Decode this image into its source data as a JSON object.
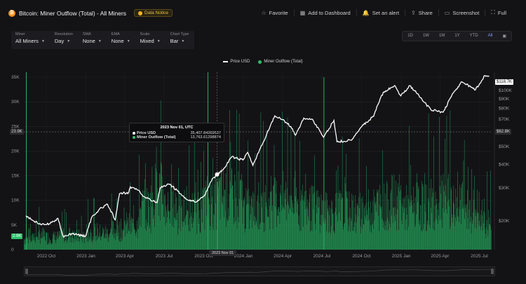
{
  "header": {
    "coin_symbol": "₿",
    "title": "Bitcoin: Miner Outflow (Total) - All Miners",
    "notice": "Data Notice",
    "actions": [
      {
        "icon": "star-icon",
        "glyph": "☆",
        "label": "Favorite"
      },
      {
        "icon": "dashboard-icon",
        "glyph": "▦",
        "label": "Add to Dashboard"
      },
      {
        "icon": "bell-icon",
        "glyph": "🔔",
        "label": "Set an alert"
      },
      {
        "icon": "share-icon",
        "glyph": "⇪",
        "label": "Share"
      },
      {
        "icon": "screenshot-icon",
        "glyph": "▭",
        "label": "Screenshot"
      },
      {
        "icon": "fullscreen-icon",
        "glyph": "⛶",
        "label": "Full"
      }
    ]
  },
  "controls": [
    {
      "label": "Miner",
      "value": "All Miners"
    },
    {
      "label": "Resolution",
      "value": "Day"
    },
    {
      "label": "SMA",
      "value": "None"
    },
    {
      "label": "EMA",
      "value": "None"
    },
    {
      "label": "Scale",
      "value": "Mixed"
    },
    {
      "label": "Chart Type",
      "value": "Bar"
    }
  ],
  "ranges": {
    "items": [
      "1D",
      "1W",
      "1M",
      "1Y",
      "YTD",
      "All"
    ],
    "active": "All",
    "calendar_icon": "▣"
  },
  "legend": [
    {
      "name": "Price USD",
      "color": "#ffffff"
    },
    {
      "name": "Miner Outflow (Total)",
      "color": "#2fbf6a"
    }
  ],
  "tooltip": {
    "date": "2023 Nov 01, UTC",
    "rows": [
      {
        "name": "Price USD",
        "value": "35,407.84269537",
        "color": "#ffffff"
      },
      {
        "name": "Miner Outflow (Total)",
        "value": "13,763.61298874",
        "color": "#2fbf6a"
      }
    ]
  },
  "badges": {
    "left_crosshair": "23.9K",
    "left_last": "2.9K",
    "right_last": "$118.7K",
    "right_crosshair": "$62.8K",
    "x_hover": "2023 Nov 01"
  },
  "chart_data": {
    "type": "bar",
    "left_axis": {
      "ticks": [
        "35K",
        "30K",
        "25K",
        "20K",
        "15K",
        "10K",
        "5K",
        "0"
      ],
      "values": [
        35000,
        30000,
        25000,
        20000,
        15000,
        10000,
        5000,
        0
      ],
      "range": [
        0,
        36000
      ]
    },
    "right_axis": {
      "scale": "log",
      "ticks": [
        "$100K",
        "$90K",
        "$80K",
        "$70K",
        "$60K",
        "$50K",
        "$40K",
        "$30K",
        "$20K"
      ],
      "values": [
        100000,
        90000,
        80000,
        70000,
        60000,
        50000,
        40000,
        30000,
        20000
      ],
      "range": [
        14000,
        125000
      ]
    },
    "x_axis": {
      "ticks": [
        "2022 Oct",
        "2023 Jan",
        "2023 Apr",
        "2023 Jul",
        "2023 Oct",
        "2024 Jan",
        "2024 Apr",
        "2024 Jul",
        "2024 Oct",
        "2025 Jan",
        "2025 Apr",
        "2025 Jul"
      ]
    },
    "series": [
      {
        "name": "Price USD",
        "axis": "right",
        "points": [
          [
            "2022-08-15",
            21300
          ],
          [
            "2022-09-01",
            20000
          ],
          [
            "2022-09-20",
            19000
          ],
          [
            "2022-10-10",
            19300
          ],
          [
            "2022-10-28",
            20600
          ],
          [
            "2022-11-09",
            16500
          ],
          [
            "2022-12-01",
            17000
          ],
          [
            "2022-12-31",
            16550
          ],
          [
            "2023-01-15",
            21000
          ],
          [
            "2023-02-01",
            23000
          ],
          [
            "2023-02-20",
            24500
          ],
          [
            "2023-03-10",
            20200
          ],
          [
            "2023-03-20",
            28000
          ],
          [
            "2023-04-10",
            28300
          ],
          [
            "2023-04-14",
            30400
          ],
          [
            "2023-05-01",
            29200
          ],
          [
            "2023-05-15",
            27000
          ],
          [
            "2023-06-15",
            25000
          ],
          [
            "2023-06-22",
            30000
          ],
          [
            "2023-07-13",
            31300
          ],
          [
            "2023-07-31",
            29200
          ],
          [
            "2023-08-17",
            26500
          ],
          [
            "2023-09-11",
            25200
          ],
          [
            "2023-10-01",
            27000
          ],
          [
            "2023-10-23",
            33900
          ],
          [
            "2023-11-01",
            35408
          ],
          [
            "2023-11-15",
            37500
          ],
          [
            "2023-12-05",
            44000
          ],
          [
            "2023-12-31",
            42300
          ],
          [
            "2024-01-11",
            46500
          ],
          [
            "2024-01-23",
            39600
          ],
          [
            "2024-02-15",
            52000
          ],
          [
            "2024-03-05",
            66000
          ],
          [
            "2024-03-14",
            73000
          ],
          [
            "2024-04-01",
            69600
          ],
          [
            "2024-04-20",
            64000
          ],
          [
            "2024-05-01",
            57500
          ],
          [
            "2024-05-20",
            71000
          ],
          [
            "2024-06-10",
            69500
          ],
          [
            "2024-07-05",
            56000
          ],
          [
            "2024-07-29",
            69000
          ],
          [
            "2024-08-05",
            53000
          ],
          [
            "2024-09-06",
            54000
          ],
          [
            "2024-09-30",
            63500
          ],
          [
            "2024-10-29",
            72500
          ],
          [
            "2024-11-13",
            90000
          ],
          [
            "2024-11-22",
            98000
          ],
          [
            "2024-12-17",
            106000
          ],
          [
            "2024-12-31",
            93400
          ],
          [
            "2025-01-21",
            106000
          ],
          [
            "2025-02-05",
            97000
          ],
          [
            "2025-02-28",
            84000
          ],
          [
            "2025-03-11",
            78500
          ],
          [
            "2025-04-08",
            76300
          ],
          [
            "2025-05-01",
            96500
          ],
          [
            "2025-05-22",
            111000
          ],
          [
            "2025-06-22",
            100500
          ],
          [
            "2025-07-14",
            120000
          ],
          [
            "2025-07-24",
            118700
          ]
        ]
      },
      {
        "name": "Miner Outflow (Total)",
        "axis": "left",
        "monthly_typical": [
          [
            "2022-08",
            2500
          ],
          [
            "2022-09",
            3200
          ],
          [
            "2022-10",
            2800
          ],
          [
            "2022-11",
            3500
          ],
          [
            "2022-12",
            3000
          ],
          [
            "2023-01",
            4000
          ],
          [
            "2023-02",
            3800
          ],
          [
            "2023-03",
            4500
          ],
          [
            "2023-04",
            5500
          ],
          [
            "2023-05",
            9500
          ],
          [
            "2023-06",
            13000
          ],
          [
            "2023-07",
            10000
          ],
          [
            "2023-08",
            8000
          ],
          [
            "2023-09",
            9000
          ],
          [
            "2023-10",
            11000
          ],
          [
            "2023-11",
            12500
          ],
          [
            "2023-12",
            12000
          ],
          [
            "2024-01",
            9000
          ],
          [
            "2024-02",
            10000
          ],
          [
            "2024-03",
            11000
          ],
          [
            "2024-04",
            11500
          ],
          [
            "2024-05",
            10000
          ],
          [
            "2024-06",
            9500
          ],
          [
            "2024-07",
            8500
          ],
          [
            "2024-08",
            9000
          ],
          [
            "2024-09",
            8500
          ],
          [
            "2024-10",
            9000
          ],
          [
            "2024-11",
            10000
          ],
          [
            "2024-12",
            11000
          ],
          [
            "2025-01",
            9500
          ],
          [
            "2025-02",
            10000
          ],
          [
            "2025-03",
            10500
          ],
          [
            "2025-04",
            11000
          ],
          [
            "2025-05",
            10000
          ],
          [
            "2025-06",
            9000
          ],
          [
            "2025-07",
            6000
          ]
        ],
        "notable_spikes": [
          [
            "2022-08-15",
            36000
          ],
          [
            "2023-10-10",
            36000
          ],
          [
            "2023-11-01",
            13764
          ],
          [
            "2024-07-05",
            35000
          ]
        ],
        "last_value": 2900
      }
    ],
    "grid": true,
    "legend_position": "top-center"
  }
}
